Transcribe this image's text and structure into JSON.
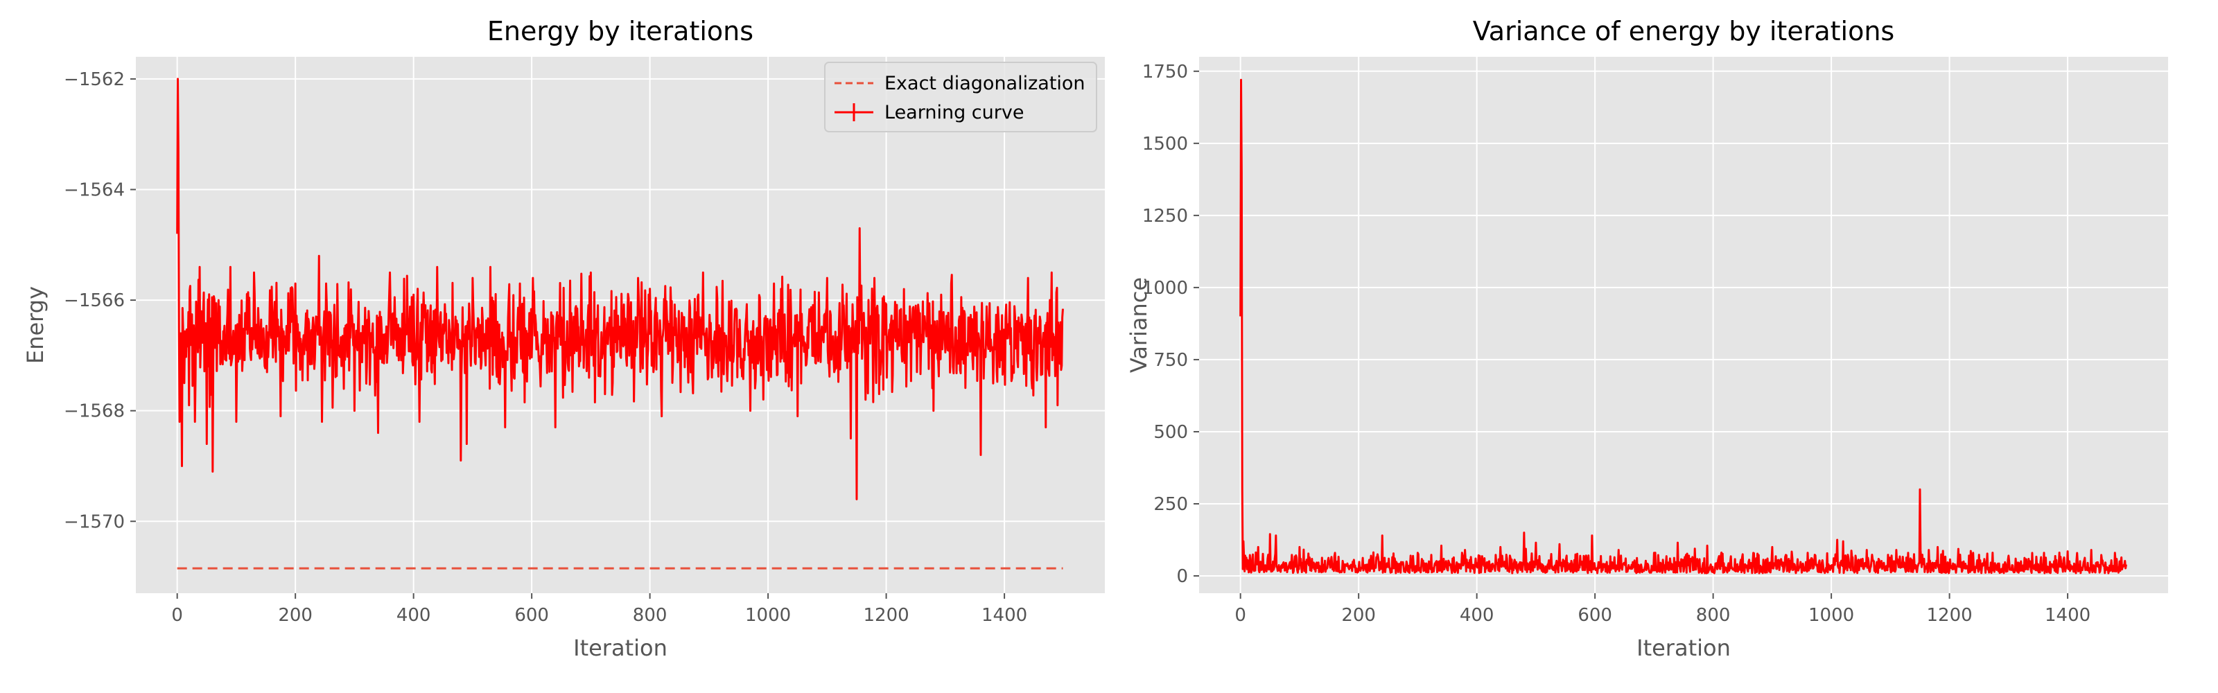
{
  "chart_data": [
    {
      "type": "line",
      "title": "Energy by iterations",
      "xlabel": "Iteration",
      "ylabel": "Energy",
      "xlim": [
        -70,
        1570
      ],
      "ylim": [
        -1571.3,
        -1561.6
      ],
      "xticks": [
        0,
        200,
        400,
        600,
        800,
        1000,
        1200,
        1400
      ],
      "yticks": [
        -1570,
        -1568,
        -1566,
        -1564,
        -1562
      ],
      "xtick_labels": [
        "0",
        "200",
        "400",
        "600",
        "800",
        "1000",
        "1200",
        "1400"
      ],
      "ytick_labels": [
        "−1570",
        "−1568",
        "−1566",
        "−1564",
        "−1562"
      ],
      "grid": true,
      "legend_position": "top-right",
      "series": [
        {
          "name": "Exact diagonalization",
          "style": "dashed",
          "color": "#e8503a",
          "x": [
            0,
            1499
          ],
          "y": [
            -1570.85,
            -1570.85
          ]
        },
        {
          "name": "Learning curve",
          "style": "solid",
          "color": "#ff0000",
          "num_points": 1500,
          "x_range": [
            0,
            1499
          ],
          "baseline": -1566.7,
          "noise_amplitude": 0.45,
          "initial": [
            [
              0,
              -1564.8
            ],
            [
              1,
              -1562.0
            ],
            [
              2,
              -1563.3
            ],
            [
              3,
              -1566.5
            ],
            [
              4,
              -1568.2
            ],
            [
              6,
              -1566.6
            ],
            [
              8,
              -1569.0
            ],
            [
              12,
              -1567.5
            ],
            [
              20,
              -1567.9
            ],
            [
              30,
              -1568.2
            ]
          ],
          "highlights": [
            [
              38,
              -1565.4
            ],
            [
              50,
              -1568.6
            ],
            [
              60,
              -1569.1
            ],
            [
              70,
              -1566.0
            ],
            [
              90,
              -1565.4
            ],
            [
              100,
              -1568.2
            ],
            [
              130,
              -1565.5
            ],
            [
              175,
              -1568.1
            ],
            [
              200,
              -1565.7
            ],
            [
              240,
              -1565.2
            ],
            [
              245,
              -1568.2
            ],
            [
              300,
              -1568.0
            ],
            [
              340,
              -1568.4
            ],
            [
              360,
              -1565.5
            ],
            [
              410,
              -1568.2
            ],
            [
              440,
              -1565.4
            ],
            [
              480,
              -1568.9
            ],
            [
              490,
              -1568.6
            ],
            [
              500,
              -1565.6
            ],
            [
              530,
              -1565.4
            ],
            [
              555,
              -1568.3
            ],
            [
              580,
              -1565.7
            ],
            [
              640,
              -1568.3
            ],
            [
              700,
              -1565.5
            ],
            [
              780,
              -1565.6
            ],
            [
              820,
              -1568.1
            ],
            [
              890,
              -1565.5
            ],
            [
              970,
              -1568.0
            ],
            [
              1010,
              -1565.7
            ],
            [
              1050,
              -1568.1
            ],
            [
              1100,
              -1565.6
            ],
            [
              1140,
              -1568.5
            ],
            [
              1150,
              -1569.6
            ],
            [
              1155,
              -1564.7
            ],
            [
              1165,
              -1567.8
            ],
            [
              1180,
              -1565.6
            ],
            [
              1230,
              -1565.8
            ],
            [
              1280,
              -1568.0
            ],
            [
              1310,
              -1565.7
            ],
            [
              1360,
              -1568.8
            ],
            [
              1440,
              -1565.6
            ],
            [
              1470,
              -1568.3
            ],
            [
              1480,
              -1565.5
            ],
            [
              1490,
              -1567.9
            ],
            [
              1495,
              -1566.4
            ]
          ]
        }
      ]
    },
    {
      "type": "line",
      "title": "Variance of energy by iterations",
      "xlabel": "Iteration",
      "ylabel": "Variance",
      "xlim": [
        -70,
        1570
      ],
      "ylim": [
        -60,
        1800
      ],
      "xticks": [
        0,
        200,
        400,
        600,
        800,
        1000,
        1200,
        1400
      ],
      "yticks": [
        0,
        250,
        500,
        750,
        1000,
        1250,
        1500,
        1750
      ],
      "xtick_labels": [
        "0",
        "200",
        "400",
        "600",
        "800",
        "1000",
        "1200",
        "1400"
      ],
      "ytick_labels": [
        "0",
        "250",
        "500",
        "750",
        "1000",
        "1250",
        "1500",
        "1750"
      ],
      "grid": true,
      "series": [
        {
          "style": "solid",
          "color": "#ff0000",
          "num_points": 1500,
          "x_range": [
            0,
            1499
          ],
          "baseline": 38,
          "noise_amplitude": 22,
          "initial": [
            [
              0,
              900
            ],
            [
              1,
              1720
            ],
            [
              2,
              1400
            ],
            [
              3,
              300
            ],
            [
              5,
              120
            ],
            [
              8,
              70
            ],
            [
              12,
              55
            ],
            [
              20,
              60
            ]
          ],
          "highlights": [
            [
              30,
              100
            ],
            [
              50,
              145
            ],
            [
              60,
              140
            ],
            [
              100,
              100
            ],
            [
              160,
              80
            ],
            [
              240,
              140
            ],
            [
              300,
              80
            ],
            [
              340,
              105
            ],
            [
              380,
              90
            ],
            [
              440,
              100
            ],
            [
              480,
              150
            ],
            [
              500,
              115
            ],
            [
              540,
              110
            ],
            [
              595,
              140
            ],
            [
              640,
              90
            ],
            [
              700,
              80
            ],
            [
              740,
              115
            ],
            [
              790,
              105
            ],
            [
              850,
              75
            ],
            [
              900,
              100
            ],
            [
              960,
              80
            ],
            [
              1010,
              125
            ],
            [
              1020,
              120
            ],
            [
              1060,
              90
            ],
            [
              1110,
              90
            ],
            [
              1130,
              80
            ],
            [
              1150,
              300
            ],
            [
              1165,
              90
            ],
            [
              1180,
              100
            ],
            [
              1240,
              80
            ],
            [
              1300,
              70
            ],
            [
              1360,
              80
            ],
            [
              1400,
              85
            ],
            [
              1440,
              90
            ],
            [
              1480,
              80
            ]
          ]
        }
      ]
    }
  ]
}
